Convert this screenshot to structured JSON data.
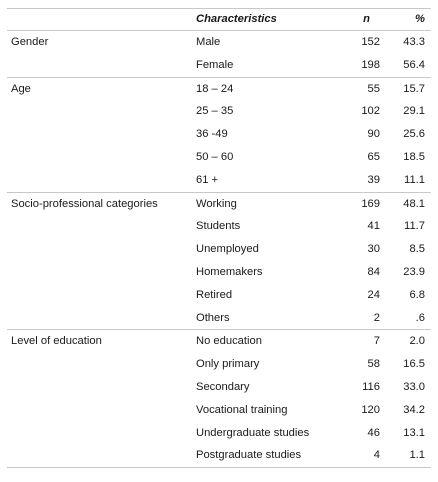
{
  "headers": {
    "characteristics": "Characteristics",
    "n": "n",
    "pct": "%"
  },
  "groups": [
    {
      "category": "Gender",
      "rows": [
        {
          "label": "Male",
          "n": "152",
          "pct": "43.3"
        },
        {
          "label": "Female",
          "n": "198",
          "pct": "56.4"
        }
      ]
    },
    {
      "category": "Age",
      "rows": [
        {
          "label": "18 – 24",
          "n": "55",
          "pct": "15.7"
        },
        {
          "label": "25 – 35",
          "n": "102",
          "pct": "29.1"
        },
        {
          "label": "36 -49",
          "n": "90",
          "pct": "25.6"
        },
        {
          "label": "50 – 60",
          "n": "65",
          "pct": "18.5"
        },
        {
          "label": "61 +",
          "n": "39",
          "pct": "11.1"
        }
      ]
    },
    {
      "category": "Socio-professional categories",
      "rows": [
        {
          "label": "Working",
          "n": "169",
          "pct": "48.1"
        },
        {
          "label": "Students",
          "n": "41",
          "pct": "11.7"
        },
        {
          "label": "Unemployed",
          "n": "30",
          "pct": "8.5"
        },
        {
          "label": "Homemakers",
          "n": "84",
          "pct": "23.9"
        },
        {
          "label": "Retired",
          "n": "24",
          "pct": "6.8"
        },
        {
          "label": "Others",
          "n": "2",
          "pct": ".6"
        }
      ]
    },
    {
      "category": "Level of education",
      "rows": [
        {
          "label": "No education",
          "n": "7",
          "pct": "2.0"
        },
        {
          "label": "Only primary",
          "n": "58",
          "pct": "16.5"
        },
        {
          "label": "Secondary",
          "n": "116",
          "pct": "33.0"
        },
        {
          "label": "Vocational training",
          "n": "120",
          "pct": "34.2"
        },
        {
          "label": "Undergraduate studies",
          "n": "46",
          "pct": "13.1"
        },
        {
          "label": "Postgraduate studies",
          "n": "4",
          "pct": "1.1"
        }
      ]
    }
  ]
}
